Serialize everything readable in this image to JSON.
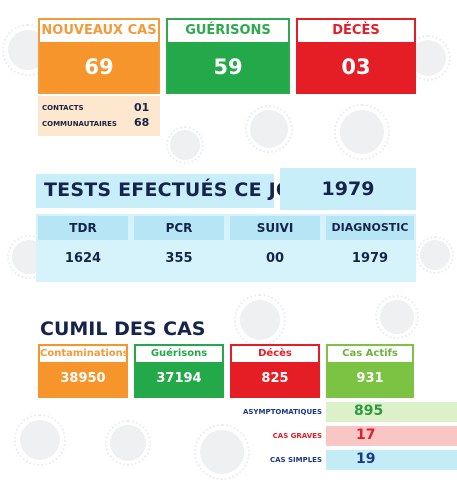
{
  "top_cards": [
    {
      "label": "NOUVEAUX CAS",
      "value": "69",
      "color": "#f6952c"
    },
    {
      "label": "GUÉRISONS",
      "value": "59",
      "color": "#23a84a"
    },
    {
      "label": "DÉCÈS",
      "value": "03",
      "color": "#e51d25"
    }
  ],
  "new_cases_breakdown": [
    {
      "label": "CONTACTS",
      "value": "01"
    },
    {
      "label": "COMMUNAUTAIRES",
      "value": "68"
    }
  ],
  "tests": {
    "title": "TESTS EFECTUÉS CE JOUR",
    "total": "1979",
    "columns": [
      {
        "label": "TDR",
        "value": "1624"
      },
      {
        "label": "PCR",
        "value": "355"
      },
      {
        "label": "SUIVI",
        "value": "00"
      },
      {
        "label": "DIAGNOSTIC",
        "value": "1979"
      }
    ]
  },
  "cumul": {
    "title": "CUMIL DES CAS",
    "cards": [
      {
        "label": "Contaminations",
        "value": "38950",
        "color": "#f6952c"
      },
      {
        "label": "Guérisons",
        "value": "37194",
        "color": "#23a84a"
      },
      {
        "label": "Décès",
        "value": "825",
        "color": "#e51d25"
      },
      {
        "label": "Cas Actifs",
        "value": "931",
        "color": "#7cc243"
      }
    ],
    "active_breakdown": [
      {
        "label": "ASYMPTOMATIQUES",
        "value": "895",
        "label_color": "#1b3a86",
        "value_color": "#2d9a3e",
        "bg": "#dcf0c9"
      },
      {
        "label": "CAS GRAVES",
        "value": "17",
        "label_color": "#e21f26",
        "value_color": "#e21f26",
        "bg": "#f8c6c5"
      },
      {
        "label": "CAS SIMPLES",
        "value": "19",
        "label_color": "#1b3a86",
        "value_color": "#1b3a86",
        "bg": "#c4ecf7"
      }
    ]
  }
}
